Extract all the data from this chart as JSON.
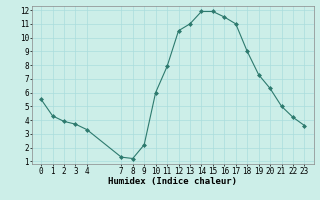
{
  "x": [
    0,
    1,
    2,
    3,
    4,
    7,
    8,
    9,
    10,
    11,
    12,
    13,
    14,
    15,
    16,
    17,
    18,
    19,
    20,
    21,
    22,
    23
  ],
  "y": [
    5.5,
    4.3,
    3.9,
    3.7,
    3.3,
    1.3,
    1.2,
    2.2,
    6.0,
    7.9,
    10.5,
    11.0,
    11.9,
    11.9,
    11.5,
    11.0,
    9.0,
    7.3,
    6.3,
    5.0,
    4.2,
    3.6
  ],
  "line_color": "#2d7a6e",
  "marker": "D",
  "marker_size": 2,
  "bg_color": "#cceee8",
  "grid_color": "#aadddd",
  "xlabel": "Humidex (Indice chaleur)",
  "xlabel_fontsize": 6.5,
  "tick_fontsize": 5.5,
  "ylim": [
    1,
    12
  ],
  "yticks": [
    1,
    2,
    3,
    4,
    5,
    6,
    7,
    8,
    9,
    10,
    11,
    12
  ],
  "xticks": [
    0,
    1,
    2,
    3,
    4,
    7,
    8,
    9,
    10,
    11,
    12,
    13,
    14,
    15,
    16,
    17,
    18,
    19,
    20,
    21,
    22,
    23
  ]
}
